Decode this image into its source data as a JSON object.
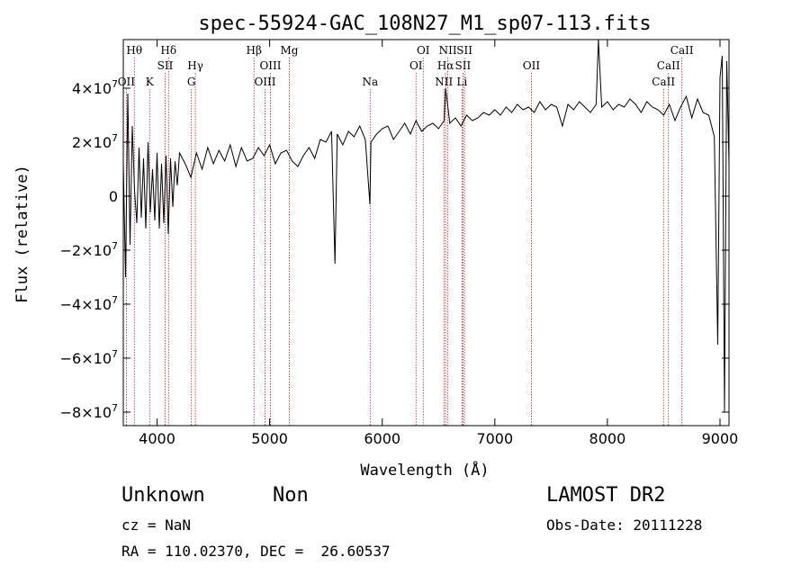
{
  "chart_data": {
    "type": "line",
    "title": "spec-55924-GAC_108N27_M1_sp07-113.fits",
    "xlabel": "Wavelength (Å)",
    "ylabel": "Flux (relative)",
    "xlim": [
      3700,
      9080
    ],
    "ylim": [
      -85000000,
      58000000
    ],
    "x_ticks": [
      4000,
      5000,
      6000,
      7000,
      8000,
      9000
    ],
    "y_ticks": [
      {
        "value": 40000000,
        "mantissa": "4×10",
        "exp": "7"
      },
      {
        "value": 20000000,
        "mantissa": "2×10",
        "exp": "7"
      },
      {
        "value": 0,
        "mantissa": "0",
        "exp": ""
      },
      {
        "value": -20000000,
        "mantissa": "−2×10",
        "exp": "7"
      },
      {
        "value": -40000000,
        "mantissa": "−4×10",
        "exp": "7"
      },
      {
        "value": -60000000,
        "mantissa": "−6×10",
        "exp": "7"
      },
      {
        "value": -80000000,
        "mantissa": "−8×10",
        "exp": "7"
      }
    ],
    "grid": false,
    "line_color": "#000000",
    "marker_color": "#b22222",
    "spectrum": {
      "x": [
        3700,
        3720,
        3740,
        3760,
        3780,
        3800,
        3820,
        3840,
        3860,
        3880,
        3900,
        3920,
        3940,
        3960,
        3980,
        4000,
        4020,
        4040,
        4060,
        4080,
        4100,
        4120,
        4140,
        4160,
        4180,
        4200,
        4250,
        4300,
        4350,
        4400,
        4450,
        4500,
        4550,
        4600,
        4650,
        4700,
        4750,
        4800,
        4850,
        4900,
        4950,
        5000,
        5050,
        5100,
        5150,
        5200,
        5250,
        5300,
        5350,
        5400,
        5450,
        5500,
        5550,
        5580,
        5600,
        5650,
        5700,
        5750,
        5800,
        5850,
        5890,
        5900,
        5950,
        6000,
        6050,
        6100,
        6150,
        6200,
        6250,
        6300,
        6350,
        6400,
        6450,
        6500,
        6550,
        6563,
        6600,
        6650,
        6700,
        6750,
        6800,
        6850,
        6900,
        6950,
        7000,
        7050,
        7100,
        7150,
        7200,
        7250,
        7300,
        7350,
        7400,
        7450,
        7500,
        7550,
        7600,
        7650,
        7700,
        7750,
        7800,
        7850,
        7900,
        7920,
        7950,
        8000,
        8050,
        8100,
        8150,
        8200,
        8250,
        8300,
        8350,
        8400,
        8450,
        8500,
        8550,
        8600,
        8650,
        8700,
        8750,
        8800,
        8850,
        8900,
        8950,
        8980,
        9000,
        9020,
        9040,
        9060,
        9080
      ],
      "y": [
        12000000,
        -30000000,
        38000000,
        -18000000,
        26000000,
        2000000,
        -10000000,
        18000000,
        -8000000,
        14000000,
        -12000000,
        20000000,
        -6000000,
        10000000,
        -9000000,
        16000000,
        -12000000,
        12000000,
        -10000000,
        15000000,
        -14000000,
        14000000,
        -4000000,
        13000000,
        4000000,
        16000000,
        12000000,
        7000000,
        16000000,
        10000000,
        18000000,
        12000000,
        17000000,
        13000000,
        19000000,
        11000000,
        18000000,
        13000000,
        14000000,
        18000000,
        15000000,
        19000000,
        12000000,
        16000000,
        17000000,
        13000000,
        11000000,
        15000000,
        18000000,
        14000000,
        21000000,
        20000000,
        24000000,
        -25000000,
        23000000,
        19000000,
        24000000,
        22000000,
        26000000,
        21000000,
        -3000000,
        20000000,
        23000000,
        25000000,
        26000000,
        21000000,
        24000000,
        27000000,
        23000000,
        28000000,
        24000000,
        26000000,
        27000000,
        25000000,
        28000000,
        40000000,
        27000000,
        29000000,
        26000000,
        30000000,
        28000000,
        29000000,
        31000000,
        30000000,
        32000000,
        30000000,
        33000000,
        31000000,
        34000000,
        32000000,
        33000000,
        31000000,
        35000000,
        32000000,
        34000000,
        33000000,
        26000000,
        34000000,
        32000000,
        35000000,
        33000000,
        31000000,
        34000000,
        58000000,
        33000000,
        35000000,
        32000000,
        34000000,
        33000000,
        36000000,
        34000000,
        31000000,
        35000000,
        33000000,
        32000000,
        30000000,
        34000000,
        28000000,
        33000000,
        37000000,
        29000000,
        36000000,
        31000000,
        30000000,
        22000000,
        -55000000,
        44000000,
        52000000,
        -80000000,
        50000000,
        12000000
      ]
    },
    "line_markers": [
      {
        "label": "Hθ",
        "x": 3798,
        "row": 0
      },
      {
        "label": "OII",
        "x": 3727,
        "row": 2
      },
      {
        "label": "K",
        "x": 3934,
        "row": 2
      },
      {
        "label": "Hδ",
        "x": 4102,
        "row": 0
      },
      {
        "label": "SII",
        "x": 4072,
        "row": 1
      },
      {
        "label": "Hγ",
        "x": 4340,
        "row": 1
      },
      {
        "label": "G",
        "x": 4305,
        "row": 2
      },
      {
        "label": "Hβ",
        "x": 4861,
        "row": 0
      },
      {
        "label": "OIII",
        "x": 5007,
        "row": 1
      },
      {
        "label": "OIII",
        "x": 4959,
        "row": 2
      },
      {
        "label": "Mg",
        "x": 5175,
        "row": 0
      },
      {
        "label": "Na",
        "x": 5893,
        "row": 2
      },
      {
        "label": "OI",
        "x": 6364,
        "row": 0
      },
      {
        "label": "OI",
        "x": 6300,
        "row": 1
      },
      {
        "label": "NII",
        "x": 6583,
        "row": 0
      },
      {
        "label": "Hα",
        "x": 6563,
        "row": 1
      },
      {
        "label": "NII",
        "x": 6548,
        "row": 2
      },
      {
        "label": "SII",
        "x": 6731,
        "row": 0
      },
      {
        "label": "SII",
        "x": 6717,
        "row": 1
      },
      {
        "label": "Li",
        "x": 6708,
        "row": 2
      },
      {
        "label": "OII",
        "x": 7325,
        "row": 1
      },
      {
        "label": "CaII",
        "x": 8662,
        "row": 0
      },
      {
        "label": "CaII",
        "x": 8542,
        "row": 1
      },
      {
        "label": "CaII",
        "x": 8498,
        "row": 2
      }
    ]
  },
  "info": {
    "object_class": "Unknown",
    "subclass": "Non",
    "survey": "LAMOST DR2",
    "cz": "cz = NaN",
    "obs_date": "Obs-Date: 20111228",
    "coords": "RA = 110.02370, DEC =  26.60537"
  }
}
